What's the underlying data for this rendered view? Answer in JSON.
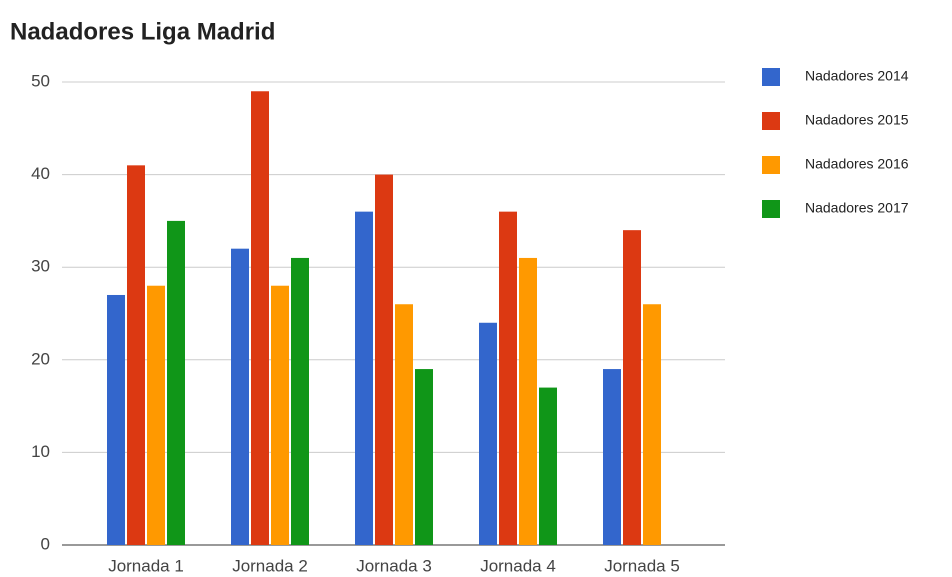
{
  "chart_data": {
    "type": "bar",
    "title": "Nadadores Liga Madrid",
    "categories": [
      "Jornada 1",
      "Jornada 2",
      "Jornada 3",
      "Jornada 4",
      "Jornada 5"
    ],
    "series": [
      {
        "name": "Nadadores 2014",
        "color": "#3366cc",
        "values": [
          27,
          32,
          36,
          24,
          19
        ]
      },
      {
        "name": "Nadadores 2015",
        "color": "#dc3912",
        "values": [
          41,
          49,
          40,
          36,
          34
        ]
      },
      {
        "name": "Nadadores 2016",
        "color": "#ff9900",
        "values": [
          28,
          28,
          26,
          31,
          26
        ]
      },
      {
        "name": "Nadadores 2017",
        "color": "#109618",
        "values": [
          35,
          31,
          19,
          17,
          null
        ]
      }
    ],
    "ylim": [
      0,
      50
    ],
    "yticks": [
      0,
      10,
      20,
      30,
      40,
      50
    ],
    "grid": true,
    "legend": "right"
  }
}
